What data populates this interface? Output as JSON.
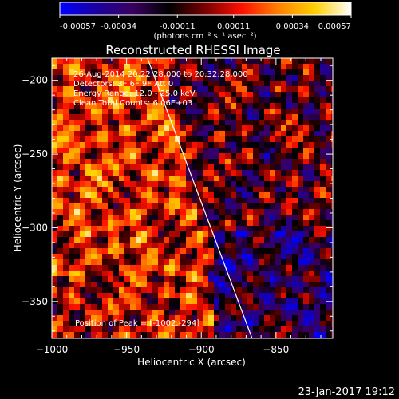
{
  "colorbar": {
    "ticks": [
      "-0.00057",
      "-0.00034",
      "-0.00011",
      "0.00011",
      "0.00034",
      "0.00057"
    ],
    "units_label": "(photons cm⁻² s⁻¹ asec⁻²)",
    "range": [
      -0.00057,
      0.00057
    ],
    "colors": [
      "#0000ff",
      "#1a00a0",
      "#3a0060",
      "#000000",
      "#7a0000",
      "#ff1000",
      "#ff8000",
      "#ffd000",
      "#ffffff"
    ]
  },
  "image": {
    "title": "Reconstructed RHESSI Image",
    "info_lines": [
      "26-Aug-2014 20:22:28.000 to 20:32:28.000",
      "Detectors: 3F 6F 9F  Att 0",
      "Energy Range: 12.0 - 25.0 keV",
      "Clean     Total Counts: 6.06E+03"
    ],
    "peak_label": "Position of Peak = [-1002,-294]"
  },
  "footer": {
    "timestamp": "23-Jan-2017 19:12"
  },
  "chart_data": {
    "type": "heatmap",
    "title": "Reconstructed RHESSI Image",
    "xlabel": "Heliocentric X (arcsec)",
    "ylabel": "Heliocentric Y (arcsec)",
    "xlim": [
      -1000,
      -812
    ],
    "ylim": [
      -375,
      -185
    ],
    "x_ticks": [
      -1000,
      -950,
      -900,
      -850
    ],
    "y_ticks": [
      -200,
      -250,
      -300,
      -350
    ],
    "x_tick_labels": [
      "−1000",
      "−950",
      "−900",
      "−850"
    ],
    "y_tick_labels": [
      "−200",
      "−250",
      "−300",
      "−350"
    ],
    "limb_line": {
      "x": [
        -936,
        -866
      ],
      "y": [
        -185,
        -375
      ]
    },
    "peak": {
      "x": -1002,
      "y": -294
    },
    "value_range": [
      -0.00057,
      0.00057
    ],
    "grid": false
  }
}
